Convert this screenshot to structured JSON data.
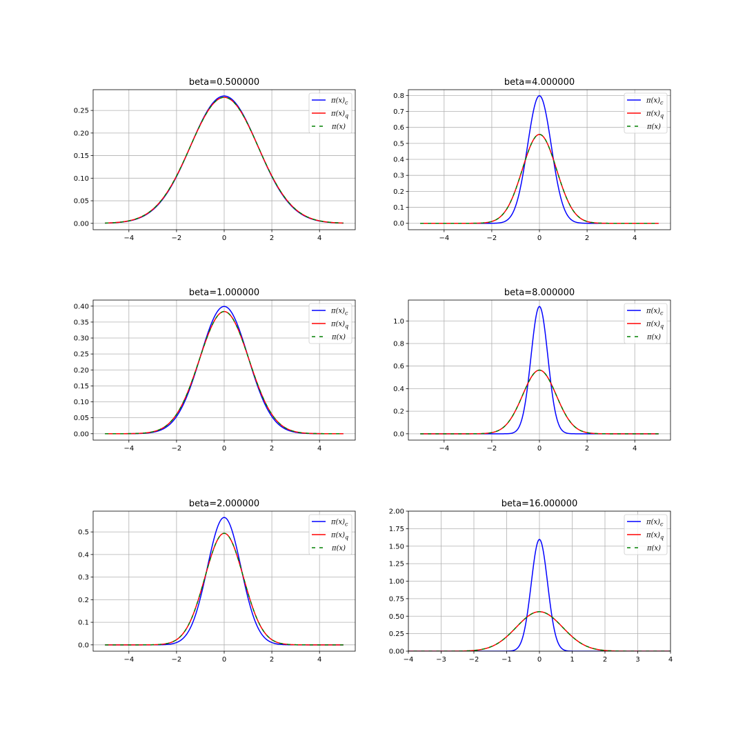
{
  "chart_data": [
    {
      "type": "line",
      "title": "beta=0.500000",
      "xlim": [
        -5.5,
        5.5
      ],
      "ylim": [
        -0.0141,
        0.296
      ],
      "xticks": [
        -4,
        -2,
        0,
        2,
        4
      ],
      "xtick_labels": [
        "−4",
        "−2",
        "0",
        "2",
        "4"
      ],
      "yticks": [
        0,
        0.05,
        0.1,
        0.15,
        0.2,
        0.25
      ],
      "ytick_labels": [
        "0.00",
        "0.05",
        "0.10",
        "0.15",
        "0.20",
        "0.25"
      ],
      "grid": true,
      "legend_position": "upper right",
      "x_range": [
        -5,
        5
      ],
      "series": [
        {
          "name": "π(x)_c",
          "color": "#0000ff",
          "style": "solid",
          "peak": 0.282,
          "sigma": 1.414
        },
        {
          "name": "π(x)_q",
          "color": "#ff0000",
          "style": "solid",
          "peak": 0.279,
          "sigma": 1.43
        },
        {
          "name": "π(x)",
          "color": "#008000",
          "style": "dashed",
          "peak": 0.279,
          "sigma": 1.43
        }
      ]
    },
    {
      "type": "line",
      "title": "beta=4.000000",
      "xlim": [
        -5.5,
        5.5
      ],
      "ylim": [
        -0.04,
        0.836
      ],
      "xticks": [
        -4,
        -2,
        0,
        2,
        4
      ],
      "xtick_labels": [
        "−4",
        "−2",
        "0",
        "2",
        "4"
      ],
      "yticks": [
        0,
        0.1,
        0.2,
        0.3,
        0.4,
        0.5,
        0.6,
        0.7,
        0.8
      ],
      "ytick_labels": [
        "0.0",
        "0.1",
        "0.2",
        "0.3",
        "0.4",
        "0.5",
        "0.6",
        "0.7",
        "0.8"
      ],
      "grid": true,
      "legend_position": "upper right",
      "x_range": [
        -5,
        5
      ],
      "series": [
        {
          "name": "π(x)_c",
          "color": "#0000ff",
          "style": "solid",
          "peak": 0.798,
          "sigma": 0.5
        },
        {
          "name": "π(x)_q",
          "color": "#ff0000",
          "style": "solid",
          "peak": 0.556,
          "sigma": 0.718
        },
        {
          "name": "π(x)",
          "color": "#008000",
          "style": "dashed",
          "peak": 0.556,
          "sigma": 0.718
        }
      ]
    },
    {
      "type": "line",
      "title": "beta=1.000000",
      "xlim": [
        -5.5,
        5.5
      ],
      "ylim": [
        -0.02,
        0.419
      ],
      "xticks": [
        -4,
        -2,
        0,
        2,
        4
      ],
      "xtick_labels": [
        "−4",
        "−2",
        "0",
        "2",
        "4"
      ],
      "yticks": [
        0,
        0.05,
        0.1,
        0.15,
        0.2,
        0.25,
        0.3,
        0.35,
        0.4
      ],
      "ytick_labels": [
        "0.00",
        "0.05",
        "0.10",
        "0.15",
        "0.20",
        "0.25",
        "0.30",
        "0.35",
        "0.40"
      ],
      "grid": true,
      "legend_position": "upper right",
      "x_range": [
        -5,
        5
      ],
      "series": [
        {
          "name": "π(x)_c",
          "color": "#0000ff",
          "style": "solid",
          "peak": 0.399,
          "sigma": 1.0
        },
        {
          "name": "π(x)_q",
          "color": "#ff0000",
          "style": "solid",
          "peak": 0.383,
          "sigma": 1.042
        },
        {
          "name": "π(x)",
          "color": "#008000",
          "style": "dashed",
          "peak": 0.383,
          "sigma": 1.042
        }
      ]
    },
    {
      "type": "line",
      "title": "beta=8.000000",
      "xlim": [
        -5.5,
        5.5
      ],
      "ylim": [
        -0.056,
        1.185
      ],
      "xticks": [
        -4,
        -2,
        0,
        2,
        4
      ],
      "xtick_labels": [
        "−4",
        "−2",
        "0",
        "2",
        "4"
      ],
      "yticks": [
        0,
        0.2,
        0.4,
        0.6,
        0.8,
        1.0
      ],
      "ytick_labels": [
        "0.0",
        "0.2",
        "0.4",
        "0.6",
        "0.8",
        "1.0"
      ],
      "grid": true,
      "legend_position": "upper right",
      "x_range": [
        -5,
        5
      ],
      "series": [
        {
          "name": "π(x)_c",
          "color": "#0000ff",
          "style": "solid",
          "peak": 1.128,
          "sigma": 0.354
        },
        {
          "name": "π(x)_q",
          "color": "#ff0000",
          "style": "solid",
          "peak": 0.564,
          "sigma": 0.707
        },
        {
          "name": "π(x)",
          "color": "#008000",
          "style": "dashed",
          "peak": 0.564,
          "sigma": 0.707
        }
      ]
    },
    {
      "type": "line",
      "title": "beta=2.000000",
      "xlim": [
        -5.5,
        5.5
      ],
      "ylim": [
        -0.028,
        0.592
      ],
      "xticks": [
        -4,
        -2,
        0,
        2,
        4
      ],
      "xtick_labels": [
        "−4",
        "−2",
        "0",
        "2",
        "4"
      ],
      "yticks": [
        0,
        0.1,
        0.2,
        0.3,
        0.4,
        0.5
      ],
      "ytick_labels": [
        "0.0",
        "0.1",
        "0.2",
        "0.3",
        "0.4",
        "0.5"
      ],
      "grid": true,
      "legend_position": "upper right",
      "x_range": [
        -5,
        5
      ],
      "series": [
        {
          "name": "π(x)_c",
          "color": "#0000ff",
          "style": "solid",
          "peak": 0.564,
          "sigma": 0.707
        },
        {
          "name": "π(x)_q",
          "color": "#ff0000",
          "style": "solid",
          "peak": 0.494,
          "sigma": 0.807
        },
        {
          "name": "π(x)",
          "color": "#008000",
          "style": "dashed",
          "peak": 0.494,
          "sigma": 0.807
        }
      ]
    },
    {
      "type": "line",
      "title": "beta=16.000000",
      "xlim": [
        -4,
        4
      ],
      "ylim": [
        0,
        2.0
      ],
      "xticks": [
        -4,
        -3,
        -2,
        -1,
        0,
        1,
        2,
        3,
        4
      ],
      "xtick_labels": [
        "−4",
        "−3",
        "−2",
        "−1",
        "0",
        "1",
        "2",
        "3",
        "4"
      ],
      "yticks": [
        0,
        0.25,
        0.5,
        0.75,
        1.0,
        1.25,
        1.5,
        1.75,
        2.0
      ],
      "ytick_labels": [
        "0.00",
        "0.25",
        "0.50",
        "0.75",
        "1.00",
        "1.25",
        "1.50",
        "1.75",
        "2.00"
      ],
      "grid": true,
      "legend_position": "upper right",
      "x_range": [
        -5,
        5
      ],
      "series": [
        {
          "name": "π(x)_c",
          "color": "#0000ff",
          "style": "solid",
          "peak": 1.596,
          "sigma": 0.25
        },
        {
          "name": "π(x)_q",
          "color": "#ff0000",
          "style": "solid",
          "peak": 0.564,
          "sigma": 0.707
        },
        {
          "name": "π(x)",
          "color": "#008000",
          "style": "dashed",
          "peak": 0.564,
          "sigma": 0.707
        }
      ]
    }
  ]
}
